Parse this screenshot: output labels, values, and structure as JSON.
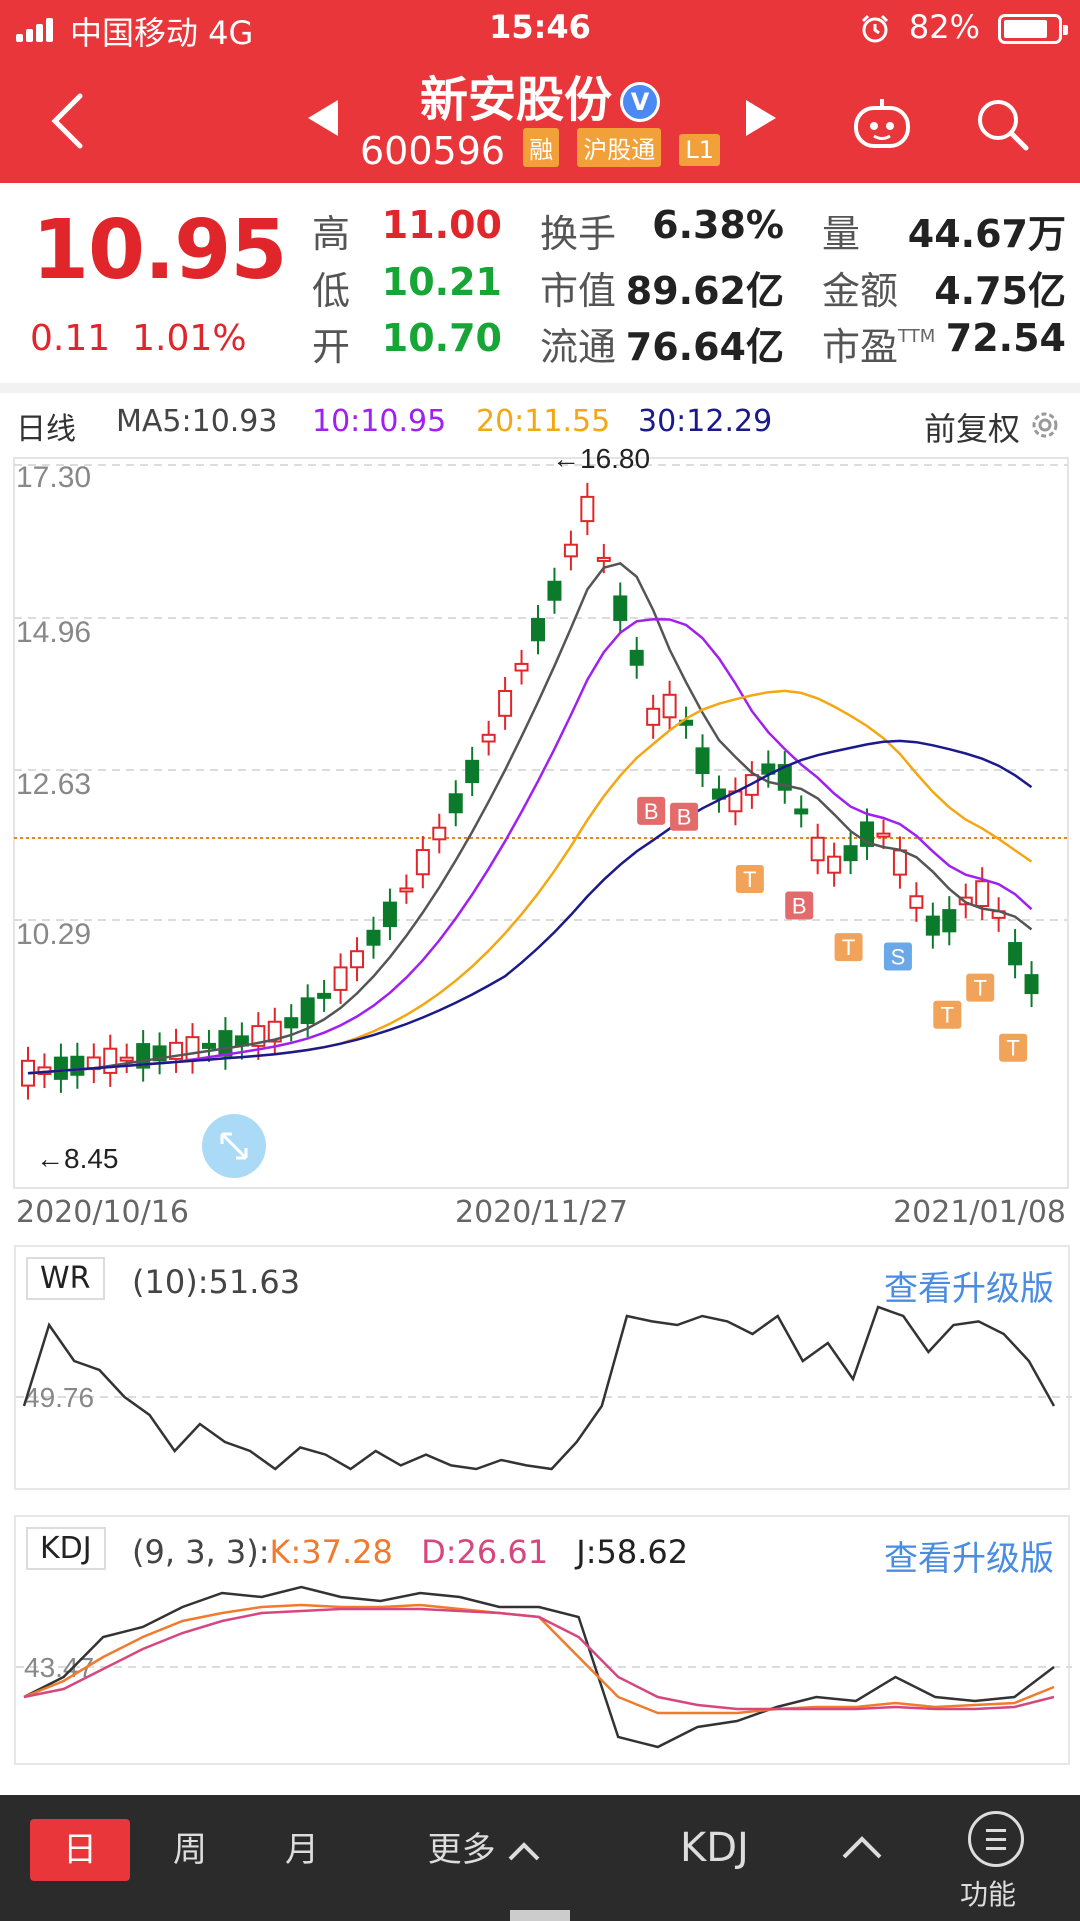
{
  "status_bar": {
    "carrier": "中国移动   4G",
    "time": "15:46",
    "battery": "82%",
    "battery_level": 0.82
  },
  "header": {
    "stock_name": "新安股份",
    "verified": "V",
    "stock_code": "600596",
    "badges": [
      "融",
      "沪股通",
      "L1"
    ]
  },
  "quote": {
    "price": "10.95",
    "change": "0.11",
    "change_pct": "1.01%",
    "high_label": "高",
    "high": "11.00",
    "low_label": "低",
    "low": "10.21",
    "open_label": "开",
    "open": "10.70",
    "turnover_label": "换手",
    "turnover": "6.38%",
    "mktcap_label": "市值",
    "mktcap": "89.62亿",
    "float_label": "流通",
    "float": "76.64亿",
    "volume_label": "量",
    "volume": "44.67万",
    "amount_label": "金额",
    "amount": "4.75亿",
    "pe_label": "市盈",
    "pe_ttm": "TTM",
    "pe": "72.54"
  },
  "ma_legend": {
    "period": "日线",
    "ma5": "MA5:10.93",
    "ma10": "10:10.95",
    "ma20": "20:11.55",
    "ma30": "30:12.29",
    "adjust": "前复权"
  },
  "kline": {
    "y_ticks": [
      "17.30",
      "14.96",
      "12.63",
      "10.29"
    ],
    "max_label": "←16.80",
    "min_label": "←8.45",
    "dates": [
      "2020/10/16",
      "2020/11/27",
      "2021/01/08"
    ],
    "colors": {
      "up": "#e0262b",
      "down": "#0b7a2a",
      "ma5": "#555555",
      "ma10": "#a020f0",
      "ma20": "#f3a712",
      "ma30": "#1a1a8c"
    }
  },
  "wr": {
    "label": "WR",
    "value": "(10):51.63",
    "ref": "49.76",
    "upgrade": "查看升级版"
  },
  "kdj": {
    "label": "KDJ",
    "params": "(9, 3, 3):",
    "k": "K:37.28",
    "d": "D:26.61",
    "j": "J:58.62",
    "ref": "43.47",
    "upgrade": "查看升级版"
  },
  "bottom_bar": {
    "tabs": [
      "日",
      "周",
      "月"
    ],
    "more": "更多",
    "indicator": "KDJ",
    "function": "功能"
  }
}
